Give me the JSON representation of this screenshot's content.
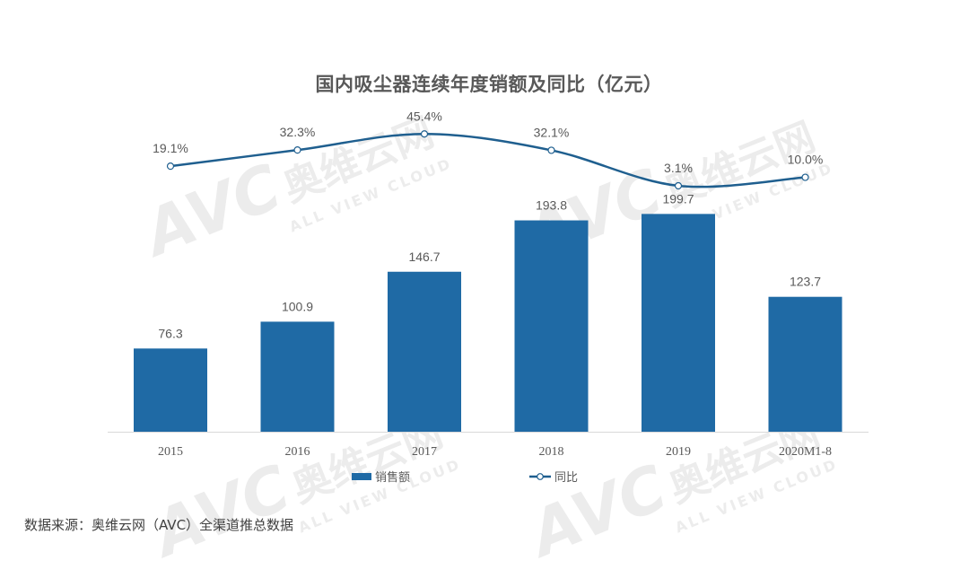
{
  "title": "国内吸尘器连续年度销额及同比（亿元）",
  "watermark": {
    "brand": "AVC",
    "cn": "奥维云网",
    "en": "ALL VIEW CLOUD"
  },
  "legend": {
    "bar": "销售额",
    "line": "同比"
  },
  "source": "数据来源：奥维云网（AVC）全渠道推总数据",
  "colors": {
    "bar": "#1f6aa5",
    "line": "#1f5f8f",
    "text": "#595959",
    "axis": "#d9d9d9"
  },
  "chart_data": {
    "type": "bar+line",
    "title": "国内吸尘器连续年度销额及同比（亿元）",
    "categories": [
      "2015",
      "2016",
      "2017",
      "2018",
      "2019",
      "2020M1-8"
    ],
    "series": [
      {
        "name": "销售额",
        "type": "bar",
        "unit": "亿元",
        "values": [
          76.3,
          100.9,
          146.7,
          193.8,
          199.7,
          123.7
        ]
      },
      {
        "name": "同比",
        "type": "line",
        "unit": "%",
        "values": [
          19.1,
          32.3,
          45.4,
          32.1,
          3.1,
          10.0
        ]
      }
    ],
    "bar_labels": [
      "76.3",
      "100.9",
      "146.7",
      "193.8",
      "199.7",
      "123.7"
    ],
    "line_labels": [
      "19.1%",
      "32.3%",
      "45.4%",
      "32.1%",
      "3.1%",
      "10.0%"
    ],
    "xlabel": "",
    "ylabel": "",
    "grid": false,
    "legend_position": "bottom"
  }
}
